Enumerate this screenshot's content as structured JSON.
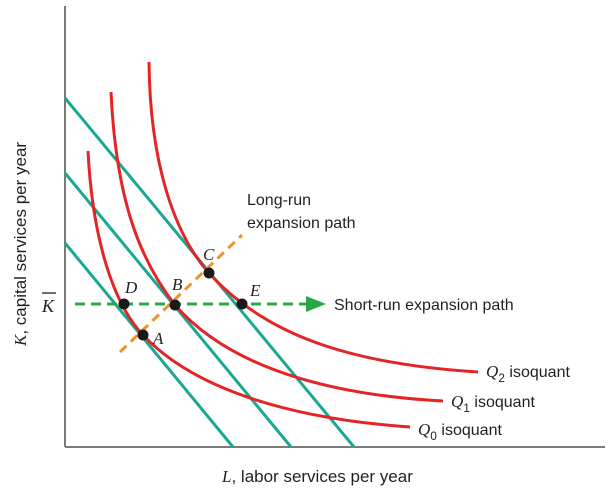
{
  "axes": {
    "y_label_var": "K",
    "y_label_rest": ", capital services per year",
    "x_label_var": "L",
    "x_label_rest": ", labor services per year",
    "k_bar": "K"
  },
  "isoquants": [
    {
      "id": "q0",
      "var": "Q",
      "sub": "0",
      "rest": " isoquant"
    },
    {
      "id": "q1",
      "var": "Q",
      "sub": "1",
      "rest": " isoquant"
    },
    {
      "id": "q2",
      "var": "Q",
      "sub": "2",
      "rest": " isoquant"
    }
  ],
  "points": [
    "A",
    "B",
    "C",
    "D",
    "E"
  ],
  "paths": {
    "long_run_line1": "Long-run",
    "long_run_line2": "expansion path",
    "short_run": "Short-run expansion path"
  },
  "colors": {
    "isoquant": "#e32526",
    "isocost": "#1aa891",
    "expansion": "#f0922b",
    "short_run": "#27a844",
    "axis": "#7a7a7a",
    "point": "#1a1a1a"
  }
}
